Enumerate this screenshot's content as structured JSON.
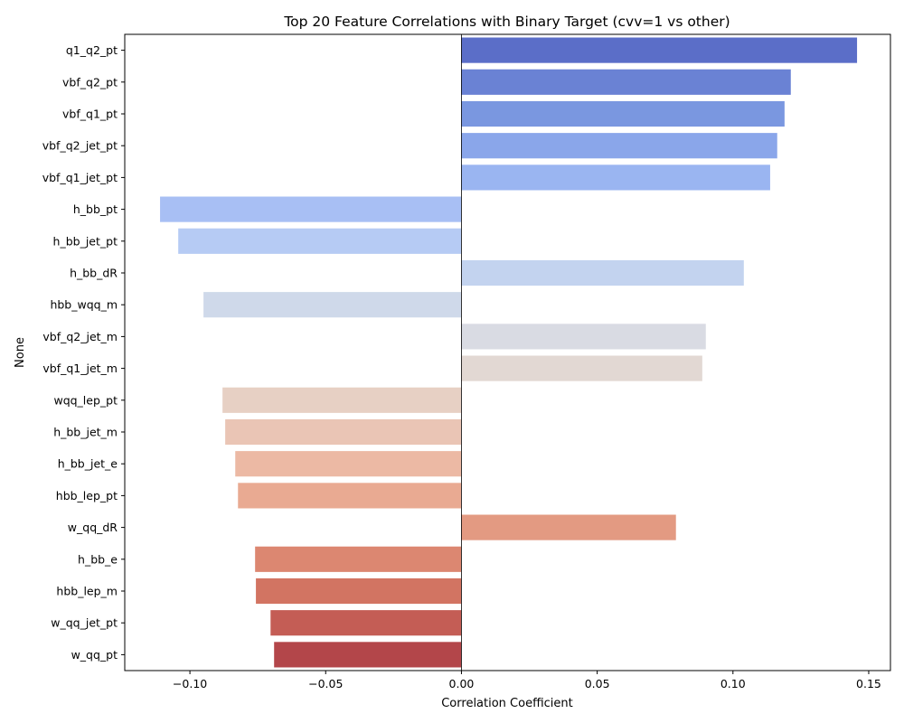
{
  "chart_data": {
    "type": "bar",
    "orientation": "horizontal",
    "title": "Top 20 Feature Correlations with Binary Target (cvv=1 vs other)",
    "xlabel": "Correlation Coefficient",
    "ylabel": "None",
    "xlim": [
      -0.124,
      0.158
    ],
    "xticks": [
      -0.1,
      -0.05,
      0.0,
      0.05,
      0.1,
      0.15
    ],
    "xtick_labels": [
      "−0.10",
      "−0.05",
      "0.00",
      "0.05",
      "0.10",
      "0.15"
    ],
    "grid": false,
    "categories": [
      "q1_q2_pt",
      "vbf_q2_pt",
      "vbf_q1_pt",
      "vbf_q2_jet_pt",
      "vbf_q1_jet_pt",
      "h_bb_pt",
      "h_bb_jet_pt",
      "h_bb_dR",
      "hbb_wqq_m",
      "vbf_q2_jet_m",
      "vbf_q1_jet_m",
      "wqq_lep_pt",
      "h_bb_jet_m",
      "h_bb_jet_e",
      "hbb_lep_pt",
      "w_qq_dR",
      "h_bb_e",
      "hbb_lep_m",
      "w_qq_jet_pt",
      "w_qq_pt"
    ],
    "values": [
      0.1457,
      0.1213,
      0.119,
      0.1163,
      0.1137,
      -0.111,
      -0.1043,
      0.104,
      -0.095,
      0.09,
      0.0887,
      -0.088,
      -0.087,
      -0.0833,
      -0.0823,
      0.079,
      -0.076,
      -0.0757,
      -0.0703,
      -0.069
    ],
    "colors": [
      "#5b6ec8",
      "#6a82d4",
      "#7a97e0",
      "#8aa6ea",
      "#9ab5f1",
      "#a8bff4",
      "#b6cbf4",
      "#c3d3ef",
      "#cfd9ea",
      "#d9dbe3",
      "#e2d8d3",
      "#e7d0c4",
      "#eac5b5",
      "#ecb9a4",
      "#e9aa92",
      "#e39a82",
      "#dc8771",
      "#d27462",
      "#c45d55",
      "#b3464a"
    ]
  }
}
